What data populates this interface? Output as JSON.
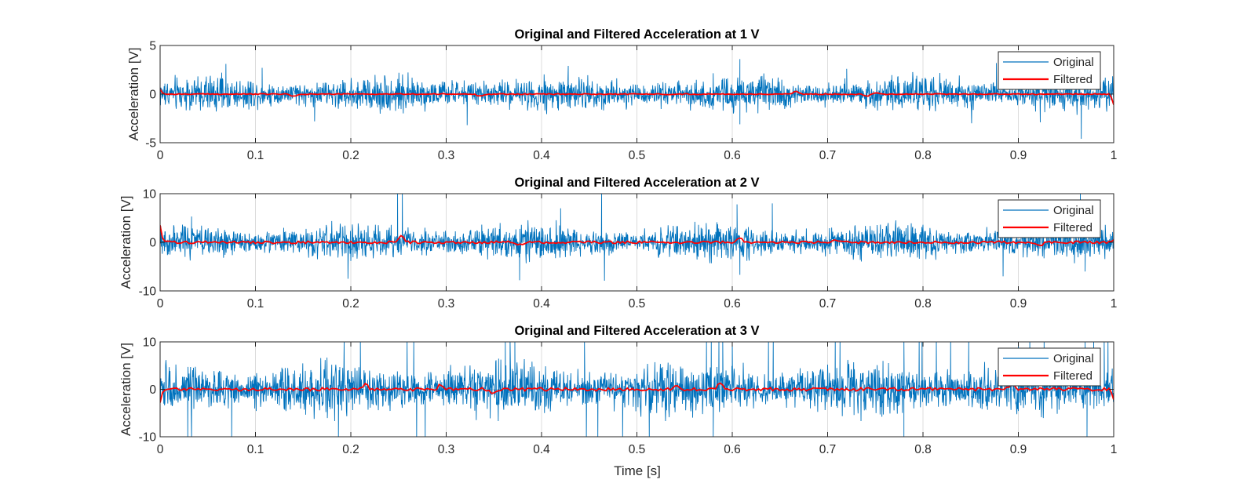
{
  "colors": {
    "original": "#0072BD",
    "filtered": "#FF0000",
    "axis": "#262626",
    "grid": "#DCDCDC",
    "background": "#FFFFFF"
  },
  "chart_data": [
    {
      "type": "line",
      "title": "Original and Filtered Acceleration at 1 V",
      "xlabel": "",
      "ylabel": "Acceleration [V]",
      "xlim": [
        0,
        1
      ],
      "ylim": [
        -5,
        5
      ],
      "xticks": [
        0,
        0.1,
        0.2,
        0.3,
        0.4,
        0.5,
        0.6,
        0.7,
        0.8,
        0.9,
        1
      ],
      "xtick_labels": [
        "0",
        "0.1",
        "0.2",
        "0.3",
        "0.4",
        "0.5",
        "0.6",
        "0.7",
        "0.8",
        "0.9",
        "1"
      ],
      "yticks": [
        -5,
        0,
        5
      ],
      "ytick_labels": [
        "-5",
        "0",
        "5"
      ],
      "grid": true,
      "legend": {
        "location": "top-right",
        "entries": [
          "Original",
          "Filtered"
        ]
      },
      "series": [
        {
          "name": "Original",
          "style": "noise",
          "envelope": [
            -2.0,
            2.1
          ],
          "mean": 0.0,
          "spikes": [
            [
              0.069,
              3.1
            ],
            [
              0.107,
              2.7
            ],
            [
              0.162,
              -2.8
            ],
            [
              0.322,
              -3.2
            ],
            [
              0.428,
              2.9
            ],
            [
              0.608,
              3.6
            ],
            [
              0.608,
              -3.1
            ],
            [
              0.851,
              -3.0
            ],
            [
              0.877,
              3.2
            ],
            [
              0.966,
              -4.6
            ],
            [
              0.923,
              -2.9
            ],
            [
              0.72,
              2.6
            ]
          ]
        },
        {
          "name": "Filtered",
          "style": "smooth",
          "amplitude": 0.05,
          "edges": [
            0.5,
            -1.1
          ],
          "bumps": [
            [
              0.14,
              -0.25
            ],
            [
              0.335,
              -0.2
            ],
            [
              0.667,
              0.25
            ],
            [
              0.741,
              -0.2
            ],
            [
              0.75,
              0.15
            ]
          ]
        }
      ]
    },
    {
      "type": "line",
      "title": "Original and Filtered Acceleration at 2 V",
      "xlabel": "",
      "ylabel": "Acceleration [V]",
      "xlim": [
        0,
        1
      ],
      "ylim": [
        -10,
        10
      ],
      "xticks": [
        0,
        0.1,
        0.2,
        0.3,
        0.4,
        0.5,
        0.6,
        0.7,
        0.8,
        0.9,
        1
      ],
      "xtick_labels": [
        "0",
        "0.1",
        "0.2",
        "0.3",
        "0.4",
        "0.5",
        "0.6",
        "0.7",
        "0.8",
        "0.9",
        "1"
      ],
      "yticks": [
        -10,
        0,
        10
      ],
      "ytick_labels": [
        "-10",
        "0",
        "10"
      ],
      "grid": true,
      "legend": {
        "location": "top-right",
        "entries": [
          "Original",
          "Filtered"
        ]
      },
      "series": [
        {
          "name": "Original",
          "style": "noise",
          "envelope": [
            -4.0,
            4.2
          ],
          "mean": 0.0,
          "spikes": [
            [
              0.033,
              5.3
            ],
            [
              0.197,
              -7.5
            ],
            [
              0.249,
              10.5
            ],
            [
              0.254,
              10.5
            ],
            [
              0.377,
              -7.8
            ],
            [
              0.42,
              7.0
            ],
            [
              0.463,
              10.5
            ],
            [
              0.466,
              -7.9
            ],
            [
              0.605,
              7.8
            ],
            [
              0.608,
              -6.7
            ],
            [
              0.642,
              8.0
            ],
            [
              0.906,
              7.2
            ],
            [
              0.884,
              -7.0
            ],
            [
              0.965,
              10.5
            ],
            [
              0.97,
              -6.0
            ]
          ]
        },
        {
          "name": "Filtered",
          "style": "smooth",
          "amplitude": 0.25,
          "edges": [
            3.5,
            0.5
          ],
          "bumps": [
            [
              0.253,
              1.2
            ],
            [
              0.376,
              -0.6
            ],
            [
              0.608,
              0.9
            ],
            [
              0.707,
              0.5
            ],
            [
              0.922,
              -0.8
            ]
          ]
        }
      ]
    },
    {
      "type": "line",
      "title": "Original and Filtered Acceleration at 3 V",
      "xlabel": "Time [s]",
      "ylabel": "Acceleration [V]",
      "xlim": [
        0,
        1
      ],
      "ylim": [
        -10,
        10
      ],
      "xticks": [
        0,
        0.1,
        0.2,
        0.3,
        0.4,
        0.5,
        0.6,
        0.7,
        0.8,
        0.9,
        1
      ],
      "xtick_labels": [
        "0",
        "0.1",
        "0.2",
        "0.3",
        "0.4",
        "0.5",
        "0.6",
        "0.7",
        "0.8",
        "0.9",
        "1"
      ],
      "yticks": [
        -10,
        0,
        10
      ],
      "ytick_labels": [
        "-10",
        "0",
        "10"
      ],
      "grid": true,
      "legend": {
        "location": "top-right",
        "entries": [
          "Original",
          "Filtered"
        ]
      },
      "series": [
        {
          "name": "Original",
          "style": "noise",
          "envelope": [
            -6.2,
            6.5
          ],
          "mean": 0.0,
          "spikes": [
            [
              0.029,
              -10.5
            ],
            [
              0.033,
              -10.5
            ],
            [
              0.075,
              -10.5
            ],
            [
              0.187,
              -10.5
            ],
            [
              0.193,
              10.5
            ],
            [
              0.21,
              10.5
            ],
            [
              0.259,
              10.5
            ],
            [
              0.266,
              10.5
            ],
            [
              0.269,
              -10.5
            ],
            [
              0.278,
              -10.5
            ],
            [
              0.362,
              10.5
            ],
            [
              0.367,
              10.5
            ],
            [
              0.372,
              10.5
            ],
            [
              0.445,
              10.5
            ],
            [
              0.447,
              -10.5
            ],
            [
              0.459,
              -10.5
            ],
            [
              0.485,
              -10.5
            ],
            [
              0.513,
              -10.5
            ],
            [
              0.573,
              10.5
            ],
            [
              0.578,
              10.5
            ],
            [
              0.58,
              -10.5
            ],
            [
              0.586,
              10.5
            ],
            [
              0.59,
              10.5
            ],
            [
              0.6,
              10.5
            ],
            [
              0.638,
              10.5
            ],
            [
              0.643,
              10.5
            ],
            [
              0.708,
              10.5
            ],
            [
              0.713,
              10.5
            ],
            [
              0.78,
              -10.5
            ],
            [
              0.78,
              10.5
            ],
            [
              0.796,
              10.5
            ],
            [
              0.799,
              10.5
            ],
            [
              0.814,
              10.5
            ],
            [
              0.829,
              10.5
            ],
            [
              0.848,
              10.5
            ],
            [
              0.9,
              10.5
            ],
            [
              0.912,
              10.5
            ],
            [
              0.927,
              10.5
            ],
            [
              0.97,
              10.5
            ],
            [
              0.972,
              -10.5
            ],
            [
              0.979,
              10.5
            ],
            [
              0.99,
              10.5
            ],
            [
              0.994,
              10.5
            ]
          ]
        },
        {
          "name": "Filtered",
          "style": "smooth",
          "amplitude": 0.35,
          "edges": [
            -2.8,
            -2.2
          ],
          "bumps": [
            [
              0.215,
              1.2
            ],
            [
              0.295,
              1.0
            ],
            [
              0.349,
              -1.1
            ],
            [
              0.542,
              0.8
            ],
            [
              0.587,
              1.0
            ],
            [
              0.893,
              1.1
            ]
          ]
        }
      ]
    }
  ]
}
